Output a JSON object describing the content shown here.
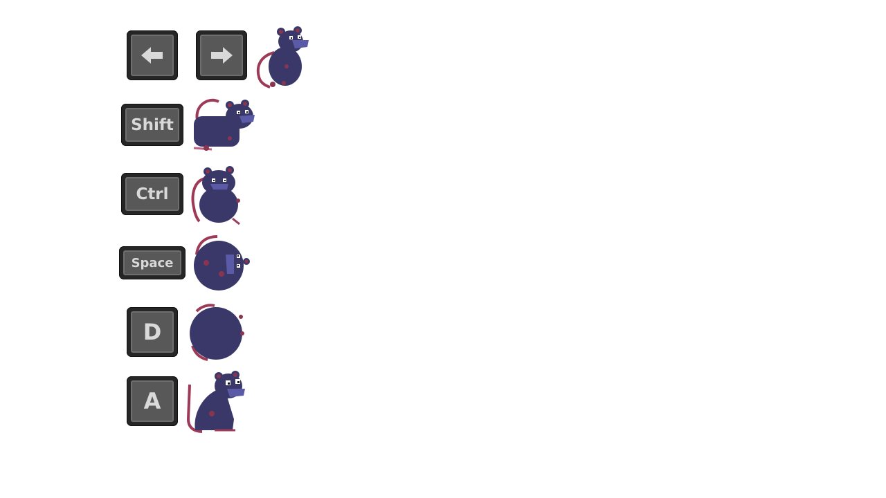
{
  "controls": [
    {
      "id": "left",
      "key_label": "",
      "icon": "arrow-left-icon",
      "action_pose": "walk"
    },
    {
      "id": "right",
      "key_label": "",
      "icon": "arrow-right-icon",
      "action_pose": "walk"
    },
    {
      "id": "shift",
      "key_label": "Shift",
      "action_pose": "run"
    },
    {
      "id": "ctrl",
      "key_label": "Ctrl",
      "action_pose": "crouch"
    },
    {
      "id": "space",
      "key_label": "Space",
      "action_pose": "jump-curl"
    },
    {
      "id": "d",
      "key_label": "D",
      "action_pose": "roll"
    },
    {
      "id": "a",
      "key_label": "A",
      "action_pose": "sit"
    }
  ],
  "colors": {
    "key_outer": "#262626",
    "key_face": "#585858",
    "key_text": "#d9d9d9",
    "rat_body": "#3a3868",
    "rat_muzzle": "#5a5aa6",
    "rat_tail": "#9c3a58",
    "rat_spot": "#8a3550"
  }
}
